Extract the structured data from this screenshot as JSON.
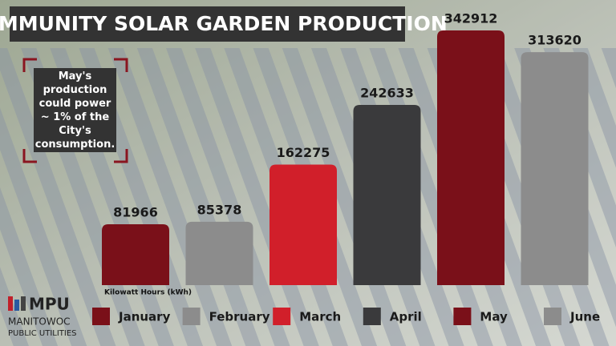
{
  "chart_data": {
    "type": "bar",
    "title": "COMMUNITY SOLAR GARDEN PRODUCTION",
    "annotation": "May's production could power ~ 1% of the City's consumption.",
    "ylabel": "Kilowatt Hours (kWh)",
    "categories": [
      "January",
      "February",
      "March",
      "April",
      "May",
      "June"
    ],
    "values": [
      81966,
      85378,
      162275,
      242633,
      342912,
      313620
    ],
    "colors": [
      "#7a1019",
      "#8c8c8c",
      "#d11f2a",
      "#3a3a3c",
      "#7a1019",
      "#8c8c8c"
    ],
    "logo": {
      "mark": "MPU",
      "line1": "MANITOWOC",
      "line2": "PUBLIC UTILITIES"
    }
  }
}
